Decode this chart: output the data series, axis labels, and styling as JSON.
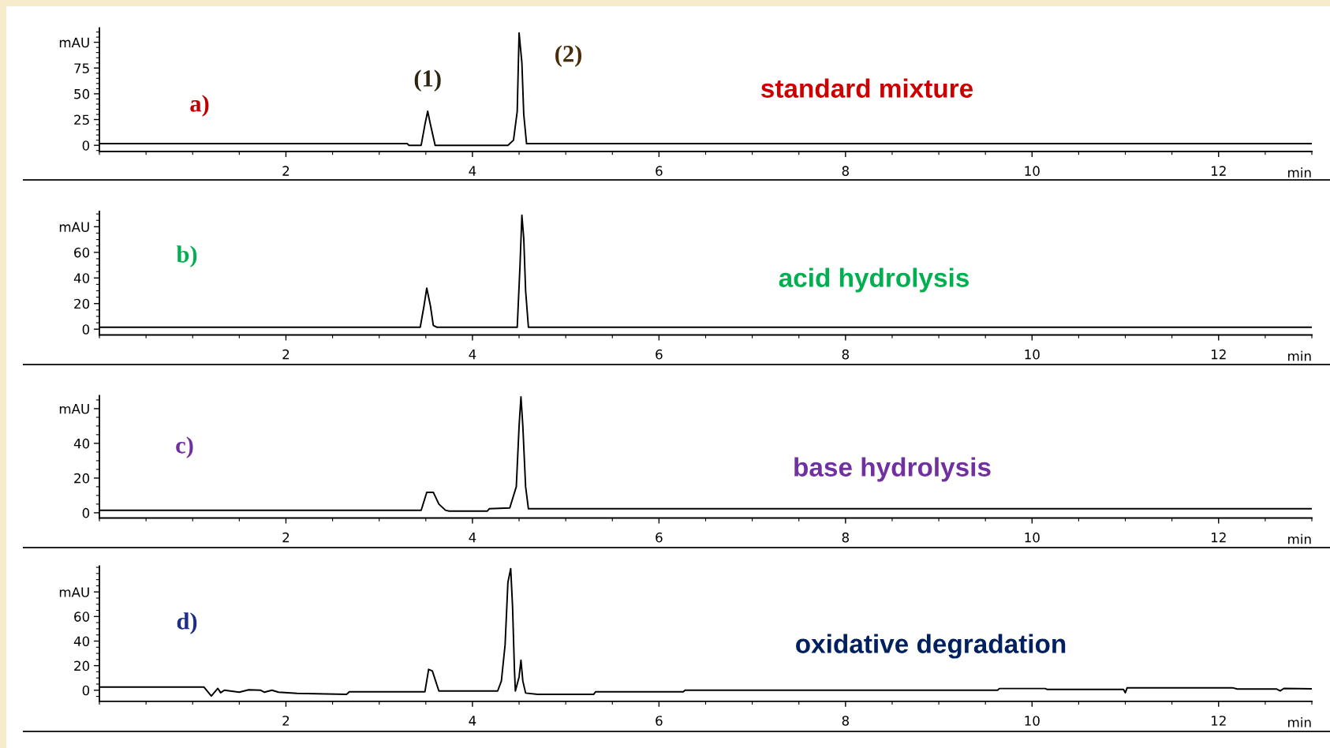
{
  "chart_data": [
    {
      "type": "line",
      "title": "standard mixture",
      "xlabel": "min",
      "annotations": [
        "a)",
        {
          "text": "(1)",
          "x": 3.52,
          "y": 33
        },
        {
          "text": "(2)",
          "x": 4.5,
          "y": 109
        }
      ],
      "xlim": [
        0,
        13
      ],
      "xticks": [
        2,
        4,
        6,
        8,
        10,
        12
      ],
      "ylim": [
        -6,
        114
      ],
      "yticks": [
        0,
        25,
        50,
        75,
        {
          "value": 100,
          "label": "mAU"
        }
      ],
      "grid": false,
      "legend": false,
      "x": [
        0,
        3.3,
        3.32,
        3.45,
        3.49,
        3.52,
        3.55,
        3.6,
        4.38,
        4.44,
        4.48,
        4.5,
        4.53,
        4.55,
        4.58,
        13
      ],
      "series": [
        {
          "color": "#000000",
          "values": [
            1.6,
            1.6,
            0,
            0,
            20,
            33,
            20,
            0,
            0,
            5,
            33,
            109,
            80,
            30,
            1.6,
            1.6
          ]
        }
      ]
    },
    {
      "type": "line",
      "title": "acid hydrolysis",
      "xlabel": "min",
      "annotations": [
        "b)"
      ],
      "xlim": [
        0,
        13
      ],
      "xticks": [
        2,
        4,
        6,
        8,
        10,
        12
      ],
      "ylim": [
        -4.5,
        92
      ],
      "yticks": [
        0,
        20,
        40,
        60,
        {
          "value": 80,
          "label": "mAU"
        }
      ],
      "grid": false,
      "legend": false,
      "x": [
        0,
        3.44,
        3.48,
        3.51,
        3.55,
        3.58,
        3.62,
        4.48,
        4.51,
        4.53,
        4.55,
        4.57,
        4.6,
        13
      ],
      "series": [
        {
          "color": "#000000",
          "values": [
            1.5,
            1.5,
            18,
            32,
            18,
            3,
            1.5,
            1.5,
            50,
            89,
            71,
            30,
            1.5,
            1.5
          ]
        }
      ]
    },
    {
      "type": "line",
      "title": "base hydrolysis",
      "xlabel": "min",
      "annotations": [
        "c)"
      ],
      "xlim": [
        0,
        13
      ],
      "xticks": [
        2,
        4,
        6,
        8,
        10,
        12
      ],
      "ylim": [
        -3,
        67.5
      ],
      "yticks": [
        0,
        20,
        40,
        {
          "value": 60,
          "label": "mAU"
        }
      ],
      "grid": false,
      "legend": false,
      "x": [
        0,
        3.45,
        3.51,
        3.58,
        3.64,
        3.71,
        3.75,
        4.16,
        4.18,
        4.4,
        4.47,
        4.5,
        4.52,
        4.54,
        4.57,
        4.6,
        13
      ],
      "series": [
        {
          "color": "#000000",
          "values": [
            1.4,
            1.4,
            11.8,
            11.8,
            5,
            1.5,
            1,
            1,
            2.3,
            2.8,
            15,
            50,
            66.8,
            50,
            15,
            2.3,
            2.3
          ]
        }
      ]
    },
    {
      "type": "line",
      "title": "oxidative degradation",
      "xlabel": "min",
      "annotations": [
        "d)"
      ],
      "xlim": [
        0,
        13
      ],
      "xticks": [
        2,
        4,
        6,
        8,
        10,
        12
      ],
      "ylim": [
        -9,
        101
      ],
      "yticks": [
        0,
        20,
        40,
        60,
        {
          "value": 80,
          "label": "mAU"
        }
      ],
      "grid": false,
      "legend": false,
      "x": [
        0,
        1.12,
        1.2,
        1.27,
        1.3,
        1.34,
        1.5,
        1.6,
        1.73,
        1.77,
        1.85,
        1.92,
        2.12,
        2.65,
        2.68,
        3.49,
        3.53,
        3.57,
        3.64,
        4.27,
        4.31,
        4.35,
        4.38,
        4.41,
        4.43,
        4.45,
        4.46,
        4.5,
        4.52,
        4.54,
        4.57,
        4.7,
        5.3,
        5.32,
        6.26,
        6.28,
        9.63,
        9.65,
        10.14,
        10.16,
        10.98,
        11.0,
        11.02,
        12.15,
        12.2,
        12.62,
        12.66,
        12.7,
        13
      ],
      "series": [
        {
          "color": "#000000",
          "values": [
            2.6,
            2.6,
            -4.7,
            1.5,
            -2,
            0,
            -1.6,
            0.3,
            0,
            -1.6,
            0,
            -1.6,
            -2.6,
            -3.4,
            -1.3,
            -1.3,
            17,
            15.7,
            -0.6,
            -0.6,
            7.5,
            37,
            87.7,
            99,
            68,
            17,
            -0.6,
            10.8,
            24.5,
            7.5,
            -2.3,
            -3.3,
            -3.3,
            -1.3,
            -1.3,
            0,
            0,
            1.4,
            1.4,
            0.7,
            0.7,
            -2,
            2,
            2,
            1,
            1,
            -0.5,
            1.5,
            1.2
          ]
        }
      ]
    }
  ]
}
